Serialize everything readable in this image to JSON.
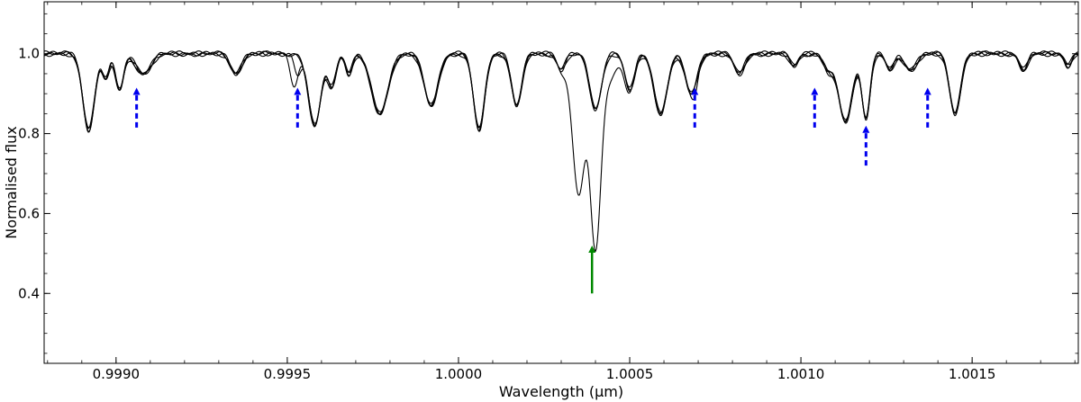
{
  "chart_data": {
    "type": "line",
    "xlabel": "Wavelength (μm)",
    "ylabel": "Normalised flux",
    "xlim": [
      0.99879,
      1.00181
    ],
    "ylim": [
      0.225,
      1.13
    ],
    "grid": false,
    "x_ticks": [
      {
        "value": 0.999,
        "label": "0.9990"
      },
      {
        "value": 0.9995,
        "label": "0.9995"
      },
      {
        "value": 1.0,
        "label": "1.0000"
      },
      {
        "value": 1.0005,
        "label": "1.0005"
      },
      {
        "value": 1.001,
        "label": "1.0010"
      },
      {
        "value": 1.0015,
        "label": "1.0015"
      }
    ],
    "x_minor_step": 0.0001,
    "y_ticks": [
      {
        "value": 0.4,
        "label": "0.4"
      },
      {
        "value": 0.6,
        "label": "0.6"
      },
      {
        "value": 0.8,
        "label": "0.8"
      },
      {
        "value": 1.0,
        "label": "1.0"
      }
    ],
    "y_minor_step": 0.05,
    "absorption_lines": [
      {
        "center": 0.99892,
        "depth": 0.19,
        "width": 1.7e-05
      },
      {
        "center": 0.99897,
        "depth": 0.06,
        "width": 1e-05
      },
      {
        "center": 0.99901,
        "depth": 0.09,
        "width": 1.2e-05
      },
      {
        "center": 0.99908,
        "depth": 0.05,
        "width": 2.2e-05
      },
      {
        "center": 0.99935,
        "depth": 0.05,
        "width": 1.6e-05
      },
      {
        "center": 0.99958,
        "depth": 0.18,
        "width": 1.8e-05
      },
      {
        "center": 0.99963,
        "depth": 0.08,
        "width": 1.2e-05
      },
      {
        "center": 0.99968,
        "depth": 0.05,
        "width": 1e-05
      },
      {
        "center": 0.99977,
        "depth": 0.15,
        "width": 2.4e-05
      },
      {
        "center": 0.99992,
        "depth": 0.13,
        "width": 2e-05
      },
      {
        "center": 1.00006,
        "depth": 0.19,
        "width": 1.6e-05
      },
      {
        "center": 1.00017,
        "depth": 0.13,
        "width": 1.5e-05
      },
      {
        "center": 1.0003,
        "depth": 0.04,
        "width": 1.2e-05
      },
      {
        "center": 1.0004,
        "depth": 0.14,
        "width": 1.7e-05
      },
      {
        "center": 1.0005,
        "depth": 0.09,
        "width": 1.4e-05
      },
      {
        "center": 1.00059,
        "depth": 0.15,
        "width": 1.9e-05
      },
      {
        "center": 1.00068,
        "depth": 0.1,
        "width": 1.7e-05
      },
      {
        "center": 1.00082,
        "depth": 0.05,
        "width": 1.5e-05
      },
      {
        "center": 1.00098,
        "depth": 0.03,
        "width": 1.2e-05
      },
      {
        "center": 1.00108,
        "depth": 0.04,
        "width": 1.4e-05
      },
      {
        "center": 1.00113,
        "depth": 0.17,
        "width": 2e-05
      },
      {
        "center": 1.00119,
        "depth": 0.16,
        "width": 1.2e-05
      },
      {
        "center": 1.00126,
        "depth": 0.04,
        "width": 1.2e-05
      },
      {
        "center": 1.00132,
        "depth": 0.04,
        "width": 1.8e-05
      },
      {
        "center": 1.00145,
        "depth": 0.15,
        "width": 1.6e-05
      },
      {
        "center": 1.00165,
        "depth": 0.04,
        "width": 1.2e-05
      },
      {
        "center": 1.00178,
        "depth": 0.03,
        "width": 1e-05
      }
    ],
    "series": [
      {
        "extra_lines": []
      },
      {
        "extra_lines": [
          {
            "center": 0.99953,
            "depth": 0.05,
            "width": 1e-05
          },
          {
            "center": 1.00069,
            "depth": 0.02,
            "width": 8e-06
          }
        ]
      },
      {
        "extra_lines": [
          {
            "center": 0.99952,
            "depth": 0.08,
            "width": 1.2e-05
          }
        ]
      },
      {
        "extra_lines": [
          {
            "center": 1.00035,
            "depth": 0.33,
            "width": 1.8e-05
          },
          {
            "center": 1.0004,
            "depth": 0.35,
            "width": 1.4e-05
          },
          {
            "center": 1.00041,
            "depth": 0.08,
            "width": 4.5e-05
          }
        ]
      }
    ],
    "annotations": {
      "blue_arrows": [
        {
          "x": 0.99906,
          "y_tail": 0.815,
          "y_head": 0.915
        },
        {
          "x": 0.99953,
          "y_tail": 0.815,
          "y_head": 0.915
        },
        {
          "x": 1.00069,
          "y_tail": 0.815,
          "y_head": 0.915
        },
        {
          "x": 1.00104,
          "y_tail": 0.815,
          "y_head": 0.915
        },
        {
          "x": 1.00119,
          "y_tail": 0.72,
          "y_head": 0.82
        },
        {
          "x": 1.00137,
          "y_tail": 0.815,
          "y_head": 0.915
        }
      ],
      "green_arrow": {
        "x": 1.00039,
        "y_tail": 0.4,
        "y_head": 0.52
      },
      "colors": {
        "blue": "#0000ee",
        "green": "#008800"
      }
    }
  }
}
